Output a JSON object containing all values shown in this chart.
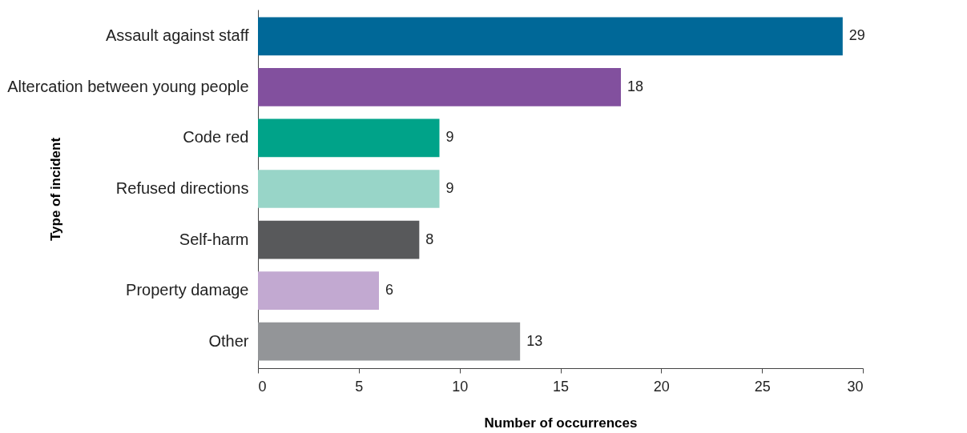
{
  "chart_data": {
    "type": "bar",
    "orientation": "horizontal",
    "xlabel": "Number of occurrences",
    "ylabel": "Type of incident",
    "categories": [
      "Assault against staff",
      "Altercation between young people",
      "Code red",
      "Refused directions",
      "Self-harm",
      "Property damage",
      "Other"
    ],
    "values": [
      29,
      18,
      9,
      9,
      8,
      6,
      13
    ],
    "colors": [
      "#006898",
      "#82509e",
      "#00a389",
      "#98d5c8",
      "#58595b",
      "#c2a9d1",
      "#939598"
    ],
    "xlim": [
      0,
      30
    ],
    "xticks": [
      0,
      5,
      10,
      15,
      20,
      25,
      30
    ],
    "data_labels": true
  }
}
